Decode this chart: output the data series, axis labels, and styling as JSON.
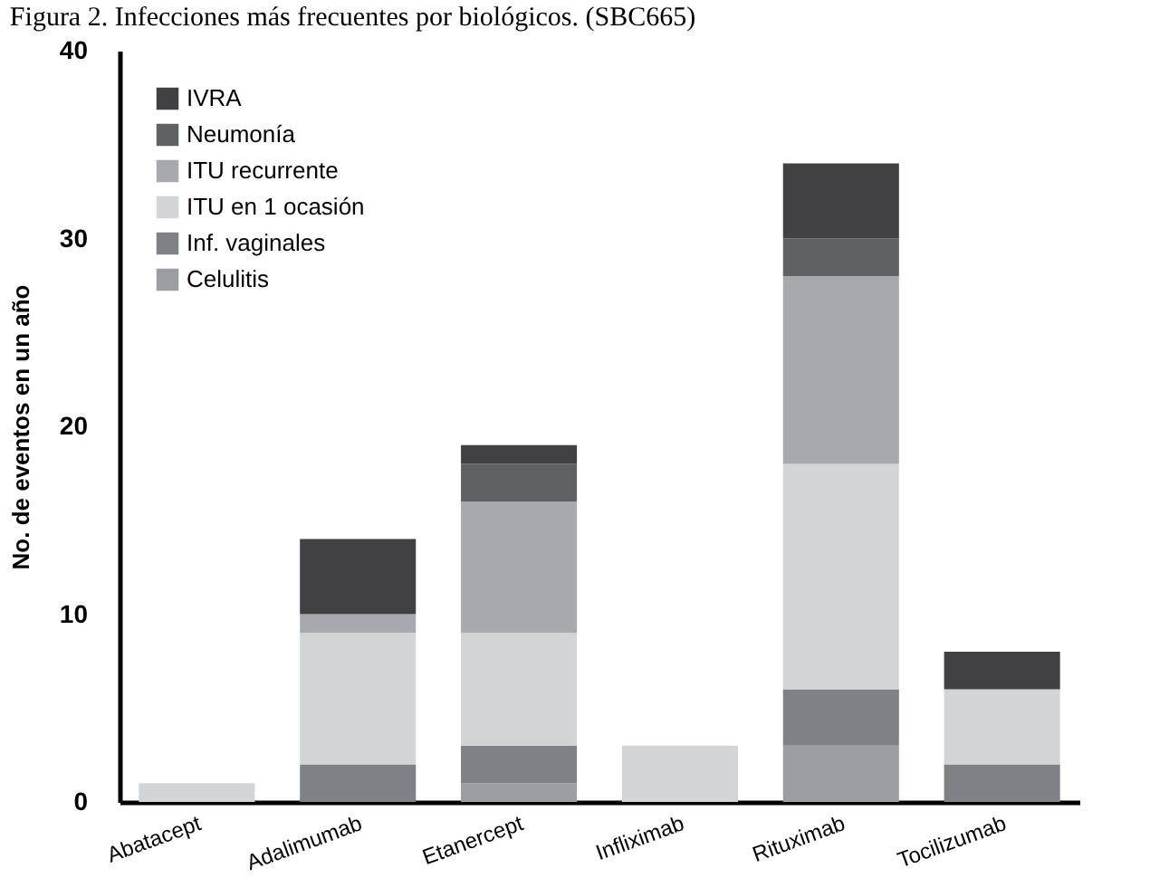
{
  "chart_data": {
    "type": "bar",
    "stacked": true,
    "title": "Figura 2. Infecciones más frecuentes por biológicos. (SBC665)",
    "ylabel": "No. de eventos en un año",
    "categories": [
      "Abatacept",
      "Adalimumab",
      "Etanercept",
      "Infliximab",
      "Rituximab",
      "Tocilizumab"
    ],
    "series": [
      {
        "name": "Celulitis",
        "color": "#9d9ea1",
        "values": [
          0,
          0,
          1,
          0,
          3,
          0
        ]
      },
      {
        "name": "Inf. vaginales",
        "color": "#808184",
        "values": [
          0,
          2,
          2,
          0,
          3,
          2
        ]
      },
      {
        "name": "ITU en 1 ocasión",
        "color": "#d3d4d6",
        "values": [
          1,
          7,
          6,
          3,
          12,
          4
        ]
      },
      {
        "name": "ITU recurrente",
        "color": "#a8a9ac",
        "values": [
          0,
          1,
          7,
          0,
          10,
          0
        ]
      },
      {
        "name": "Neumonía",
        "color": "#606163",
        "values": [
          0,
          0,
          2,
          0,
          2,
          0
        ]
      },
      {
        "name": "IVRA",
        "color": "#414143",
        "values": [
          0,
          4,
          1,
          0,
          4,
          2
        ]
      }
    ],
    "ylim": [
      0,
      40
    ],
    "yticks": [
      0,
      10,
      20,
      30,
      40
    ],
    "grid": false,
    "legend": "top left"
  }
}
